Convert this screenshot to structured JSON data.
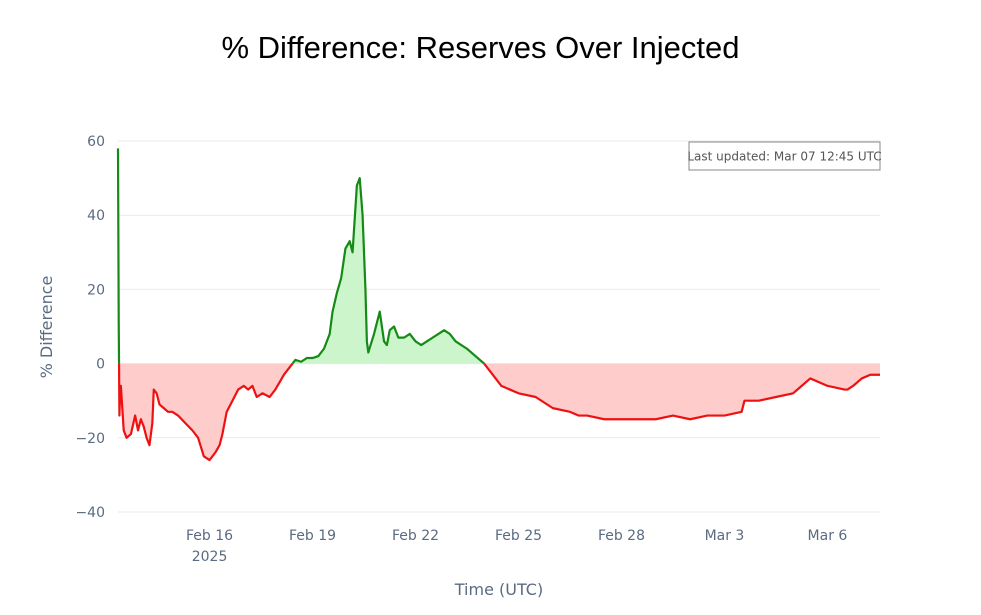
{
  "chart_data": {
    "type": "area",
    "title": "% Difference: Reserves Over Injected",
    "xlabel": "Time (UTC)",
    "ylabel": "% Difference",
    "ylim": [
      -40,
      60
    ],
    "yticks": [
      60,
      40,
      20,
      0,
      -20,
      -40
    ],
    "xlim": [
      "2025-02-13T08:00",
      "2025-03-07T12:45"
    ],
    "xticks": [
      {
        "x": "2025-02-16",
        "label": "Feb 16",
        "sublabel": "2025"
      },
      {
        "x": "2025-02-19",
        "label": "Feb 19",
        "sublabel": ""
      },
      {
        "x": "2025-02-22",
        "label": "Feb 22",
        "sublabel": ""
      },
      {
        "x": "2025-02-25",
        "label": "Feb 25",
        "sublabel": ""
      },
      {
        "x": "2025-02-28",
        "label": "Feb 28",
        "sublabel": ""
      },
      {
        "x": "2025-03-03",
        "label": "Mar 3",
        "sublabel": ""
      },
      {
        "x": "2025-03-06",
        "label": "Mar 6",
        "sublabel": ""
      }
    ],
    "annotation": "Last updated: Mar 07 12:45 UTC",
    "legend": "none",
    "grid": "horizontal",
    "colors": {
      "positive_line": "#168a16",
      "positive_fill": "#ccf5cc",
      "negative_line": "#ee1111",
      "negative_fill": "#ffcccc",
      "grid": "#e6e9ef",
      "tick_text": "#5a6b82"
    },
    "series": [
      {
        "x": [
          "2025-02-13T08:00",
          "2025-02-13T08:30",
          "2025-02-13T09:00",
          "2025-02-13T09:30",
          "2025-02-13T10:00",
          "2025-02-13T12:00",
          "2025-02-13T14:00",
          "2025-02-13T17:00",
          "2025-02-13T20:00",
          "2025-02-13T22:00",
          "2025-02-14T00:00",
          "2025-02-14T02:00",
          "2025-02-14T04:00",
          "2025-02-14T06:00",
          "2025-02-14T08:00",
          "2025-02-14T09:00",
          "2025-02-14T11:00",
          "2025-02-14T13:00",
          "2025-02-14T16:00",
          "2025-02-14T19:00",
          "2025-02-14T22:00",
          "2025-02-15T02:00",
          "2025-02-15T07:00",
          "2025-02-15T12:00",
          "2025-02-15T16:00",
          "2025-02-15T20:00",
          "2025-02-16T00:00",
          "2025-02-16T04:00",
          "2025-02-16T07:00",
          "2025-02-16T09:00",
          "2025-02-16T12:00",
          "2025-02-16T16:00",
          "2025-02-16T20:00",
          "2025-02-17T00:00",
          "2025-02-17T03:00",
          "2025-02-17T06:00",
          "2025-02-17T09:00",
          "2025-02-17T13:00",
          "2025-02-17T18:00",
          "2025-02-17T22:00",
          "2025-02-18T01:00",
          "2025-02-18T04:00",
          "2025-02-18T08:00",
          "2025-02-18T12:00",
          "2025-02-18T16:00",
          "2025-02-18T20:00",
          "2025-02-19T00:00",
          "2025-02-19T04:00",
          "2025-02-19T08:00",
          "2025-02-19T12:00",
          "2025-02-19T14:00",
          "2025-02-19T17:00",
          "2025-02-19T20:00",
          "2025-02-19T23:00",
          "2025-02-20T02:00",
          "2025-02-20T04:00",
          "2025-02-20T05:00",
          "2025-02-20T07:00",
          "2025-02-20T09:00",
          "2025-02-20T11:00",
          "2025-02-20T13:00",
          "2025-02-20T14:00",
          "2025-02-20T15:00",
          "2025-02-20T19:00",
          "2025-02-20T23:00",
          "2025-02-21T02:00",
          "2025-02-21T04:00",
          "2025-02-21T06:00",
          "2025-02-21T09:00",
          "2025-02-21T12:00",
          "2025-02-21T16:00",
          "2025-02-21T20:00",
          "2025-02-22T00:00",
          "2025-02-22T04:00",
          "2025-02-22T08:00",
          "2025-02-22T12:00",
          "2025-02-22T16:00",
          "2025-02-22T20:00",
          "2025-02-23T00:00",
          "2025-02-23T04:00",
          "2025-02-23T08:00",
          "2025-02-23T12:00",
          "2025-02-23T18:00",
          "2025-02-24T00:00",
          "2025-02-24T06:00",
          "2025-02-24T12:00",
          "2025-02-24T18:00",
          "2025-02-25T00:00",
          "2025-02-25T12:00",
          "2025-02-26T00:00",
          "2025-02-26T12:00",
          "2025-02-26T18:00",
          "2025-02-27T00:00",
          "2025-02-27T12:00",
          "2025-02-28T00:00",
          "2025-02-28T12:00",
          "2025-03-01T00:00",
          "2025-03-01T12:00",
          "2025-03-02T00:00",
          "2025-03-02T12:00",
          "2025-03-03T00:00",
          "2025-03-03T12:00",
          "2025-03-03T14:00",
          "2025-03-04T00:00",
          "2025-03-04T12:00",
          "2025-03-05T00:00",
          "2025-03-05T06:00",
          "2025-03-05T12:00",
          "2025-03-06T00:00",
          "2025-03-06T12:00",
          "2025-03-06T14:00",
          "2025-03-06T18:00",
          "2025-03-07T00:00",
          "2025-03-07T06:00",
          "2025-03-07T12:45"
        ],
        "y": [
          58,
          11,
          -14,
          -7,
          -6,
          -18,
          -20,
          -19,
          -14,
          -18,
          -15,
          -17,
          -20,
          -22,
          -16,
          -7,
          -8,
          -11,
          -12,
          -13,
          -13,
          -14,
          -16,
          -18,
          -20,
          -25,
          -26,
          -24,
          -22,
          -19,
          -13,
          -10,
          -7,
          -6,
          -7,
          -6,
          -9,
          -8,
          -9,
          -7,
          -5,
          -3,
          -1,
          1,
          0.5,
          1.5,
          1.5,
          2,
          4,
          8,
          14,
          19,
          23,
          31,
          33,
          30,
          36,
          48,
          50,
          40,
          20,
          6,
          3,
          8,
          14,
          6,
          5,
          9,
          10,
          7,
          7,
          8,
          6,
          5,
          6,
          7,
          8,
          9,
          8,
          6,
          5,
          4,
          2,
          0,
          -3,
          -6,
          -7,
          -8,
          -9,
          -12,
          -13,
          -14,
          -14,
          -15,
          -15,
          -15,
          -15,
          -14,
          -15,
          -14,
          -14,
          -13,
          -10,
          -10,
          -9,
          -8,
          -6,
          -4,
          -6,
          -7,
          -7,
          -6,
          -4,
          -3,
          -3
        ]
      }
    ]
  }
}
